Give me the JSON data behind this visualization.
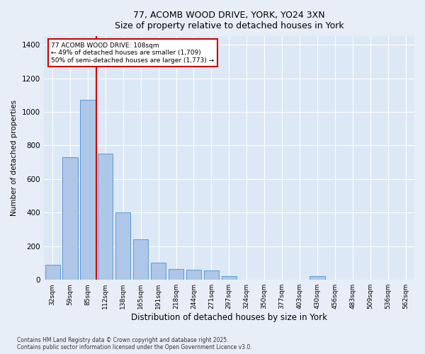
{
  "title_line1": "77, ACOMB WOOD DRIVE, YORK, YO24 3XN",
  "title_line2": "Size of property relative to detached houses in York",
  "xlabel": "Distribution of detached houses by size in York",
  "ylabel": "Number of detached properties",
  "categories": [
    "32sqm",
    "59sqm",
    "85sqm",
    "112sqm",
    "138sqm",
    "165sqm",
    "191sqm",
    "218sqm",
    "244sqm",
    "271sqm",
    "297sqm",
    "324sqm",
    "350sqm",
    "377sqm",
    "403sqm",
    "430sqm",
    "456sqm",
    "483sqm",
    "509sqm",
    "536sqm",
    "562sqm"
  ],
  "values": [
    90,
    730,
    1070,
    750,
    400,
    240,
    100,
    65,
    60,
    55,
    20,
    0,
    0,
    0,
    0,
    20,
    0,
    0,
    0,
    0,
    0
  ],
  "bar_color": "#aec6e8",
  "bar_edge_color": "#5b9bd5",
  "fig_bg_color": "#e8eef8",
  "background_color": "#dce8f5",
  "grid_color": "#ffffff",
  "vline_color": "#cc0000",
  "annotation_text": "77 ACOMB WOOD DRIVE: 108sqm\n← 49% of detached houses are smaller (1,709)\n50% of semi-detached houses are larger (1,773) →",
  "annotation_box_color": "#cc0000",
  "ylim": [
    0,
    1450
  ],
  "yticks": [
    0,
    200,
    400,
    600,
    800,
    1000,
    1200,
    1400
  ],
  "footer_line1": "Contains HM Land Registry data © Crown copyright and database right 2025.",
  "footer_line2": "Contains public sector information licensed under the Open Government Licence v3.0."
}
